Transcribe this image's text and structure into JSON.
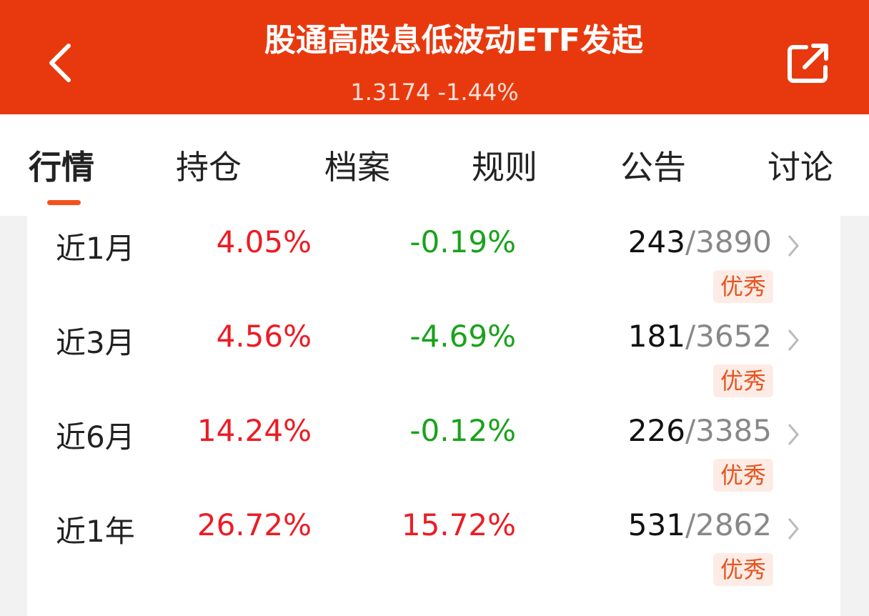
{
  "header": {
    "title": "股通高股息低波动ETF发起",
    "subtitle": "1.3174 -1.44%"
  },
  "tabs": [
    "行情",
    "持仓",
    "档案",
    "规则",
    "公告",
    "讨论"
  ],
  "active_tab": 0,
  "table": {
    "rows": [
      [
        "近1月",
        "4.05%",
        "-0.19%",
        "243",
        "/3890",
        "优秀"
      ],
      [
        "近3月",
        "4.56%",
        "-4.69%",
        "181",
        "/3652",
        "优秀"
      ],
      [
        "近6月",
        "14.24%",
        "-0.12%",
        "226",
        "/3385",
        "优秀"
      ],
      [
        "近1年",
        "26.72%",
        "15.72%",
        "531",
        "/2862",
        "优秀"
      ]
    ]
  }
}
